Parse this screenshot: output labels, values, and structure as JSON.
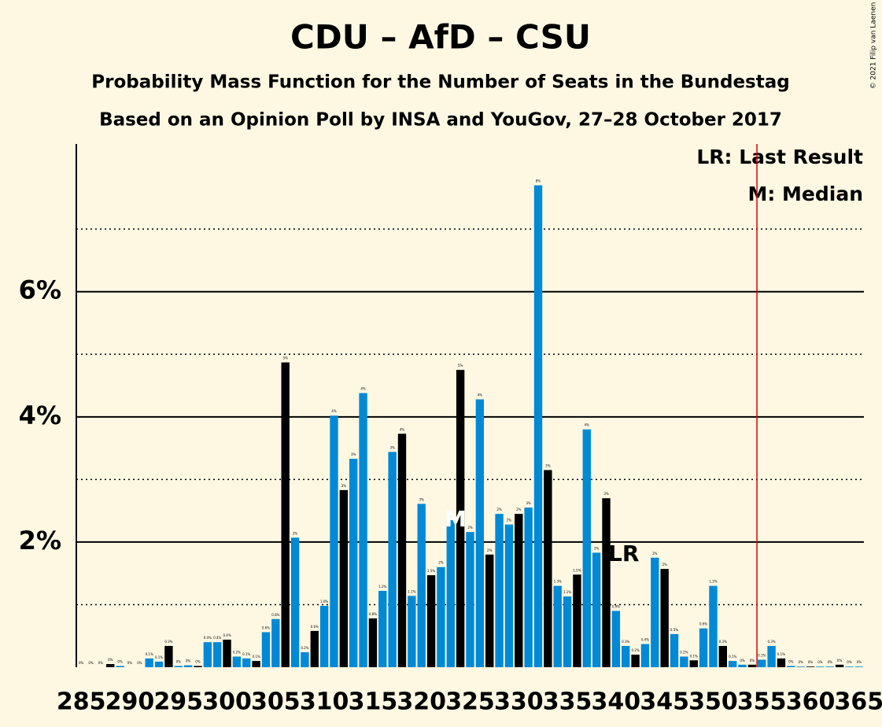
{
  "chart_data": {
    "type": "bar",
    "title": "CDU – AfD – CSU",
    "subtitle": "Probability Mass Function for the Number of Seats in the Bundestag",
    "subtitle2": "Based on an Opinion Poll by INSA and YouGov, 27–28 October 2017",
    "copyright": "© 2021 Filip van Laenen",
    "legend": [
      "LR: Last Result",
      "M: Median"
    ],
    "x": [
      285,
      286,
      287,
      288,
      289,
      290,
      291,
      292,
      293,
      294,
      295,
      296,
      297,
      298,
      299,
      300,
      301,
      302,
      303,
      304,
      305,
      306,
      307,
      308,
      309,
      310,
      311,
      312,
      313,
      314,
      315,
      316,
      317,
      318,
      319,
      320,
      321,
      322,
      323,
      324,
      325,
      326,
      327,
      328,
      329,
      330,
      331,
      332,
      333,
      334,
      335,
      336,
      337,
      338,
      339,
      340,
      341,
      342,
      343,
      344,
      345,
      346,
      347,
      348,
      349,
      350,
      351,
      352,
      353,
      354,
      355,
      356,
      357,
      358,
      359,
      360,
      361,
      362,
      363,
      364,
      365
    ],
    "values": [
      0,
      0,
      0,
      0.05,
      0.02,
      0,
      0,
      0.14,
      0.09,
      0.34,
      0.02,
      0.03,
      0.02,
      0.4,
      0.4,
      0.44,
      0.17,
      0.14,
      0.1,
      0.56,
      0.77,
      4.87,
      2.07,
      0.24,
      0.58,
      0.98,
      4.02,
      2.83,
      3.33,
      4.38,
      0.78,
      1.22,
      3.44,
      3.73,
      1.14,
      2.61,
      1.47,
      1.6,
      2.35,
      4.75,
      2.16,
      4.28,
      1.8,
      2.45,
      2.28,
      2.45,
      2.55,
      7.7,
      3.15,
      1.3,
      1.13,
      1.48,
      3.8,
      1.83,
      2.7,
      0.9,
      0.34,
      0.2,
      0.37,
      1.75,
      1.57,
      0.53,
      0.17,
      0.11,
      0.62,
      1.3,
      0.34,
      0.1,
      0.04,
      0.04,
      0.12,
      0.34,
      0.14,
      0.02,
      0.01,
      0.01,
      0.01,
      0.01,
      0.04,
      0.01,
      0.01
    ],
    "value_labels": [
      "0%",
      "0%",
      "0%",
      "0%",
      "0%",
      "0%",
      "0%",
      "0.1%",
      "0.1%",
      "0.3%",
      "0%",
      "0%",
      "0%",
      "0.4%",
      "0.4%",
      "0.4%",
      "0.2%",
      "0.1%",
      "0.1%",
      "0.6%",
      "0.8%",
      "5%",
      "2%",
      "0.2%",
      "0.6%",
      "1.0%",
      "4%",
      "3%",
      "3%",
      "4%",
      "0.8%",
      "1.2%",
      "3%",
      "4%",
      "1.1%",
      "3%",
      "1.5%",
      "2%",
      "2%",
      "5%",
      "2%",
      "4%",
      "2%",
      "2%",
      "2%",
      "2%",
      "3%",
      "8%",
      "3%",
      "1.3%",
      "1.1%",
      "1.5%",
      "4%",
      "2%",
      "3%",
      "0.9%",
      "0.3%",
      "0.2%",
      "0.4%",
      "2%",
      "2%",
      "0.5%",
      "0.2%",
      "0.1%",
      "0.6%",
      "1.3%",
      "0.3%",
      "0.1%",
      "0%",
      "0%",
      "0.1%",
      "0.3%",
      "0.1%",
      "0%",
      "0%",
      "0%",
      "0%",
      "0%",
      "0%",
      "0%",
      "0%"
    ],
    "colors": [
      "#000000",
      "#0089d6",
      "#0089d6",
      "#000000",
      "#0089d6",
      "#0089d6",
      "#000000",
      "#0089d6",
      "#0089d6",
      "#000000",
      "#0089d6",
      "#0089d6",
      "#000000",
      "#0089d6",
      "#0089d6",
      "#000000",
      "#0089d6",
      "#0089d6",
      "#000000",
      "#0089d6",
      "#0089d6",
      "#000000",
      "#0089d6",
      "#0089d6",
      "#000000",
      "#0089d6",
      "#0089d6",
      "#000000",
      "#0089d6",
      "#0089d6",
      "#000000",
      "#0089d6",
      "#0089d6",
      "#000000",
      "#0089d6",
      "#0089d6",
      "#000000",
      "#0089d6",
      "#0089d6",
      "#000000",
      "#0089d6",
      "#0089d6",
      "#000000",
      "#0089d6",
      "#0089d6",
      "#000000",
      "#0089d6",
      "#0089d6",
      "#000000",
      "#0089d6",
      "#0089d6",
      "#000000",
      "#0089d6",
      "#0089d6",
      "#000000",
      "#0089d6",
      "#0089d6",
      "#000000",
      "#0089d6",
      "#0089d6",
      "#000000",
      "#0089d6",
      "#0089d6",
      "#000000",
      "#0089d6",
      "#0089d6",
      "#000000",
      "#0089d6",
      "#0089d6",
      "#000000",
      "#0089d6",
      "#0089d6",
      "#000000",
      "#0089d6",
      "#0089d6",
      "#000000",
      "#0089d6",
      "#0089d6",
      "#000000",
      "#0089d6",
      "#0089d6"
    ],
    "xlim": [
      284.5,
      365.5
    ],
    "xticks": [
      285,
      290,
      295,
      300,
      305,
      310,
      315,
      320,
      325,
      330,
      335,
      340,
      345,
      350,
      355,
      360,
      365
    ],
    "ylim": [
      0,
      8.36
    ],
    "yticks": [
      {
        "value": 2,
        "label": "2%"
      },
      {
        "value": 4,
        "label": "4%"
      },
      {
        "value": 6,
        "label": "6%"
      }
    ],
    "minor_grid": [
      1,
      3,
      5,
      7
    ],
    "annotations": [
      {
        "text": "M",
        "x": 324
      },
      {
        "text": "LR",
        "x": 340
      }
    ],
    "last_result_line": 354.5,
    "last_result_color": "#e00000"
  }
}
